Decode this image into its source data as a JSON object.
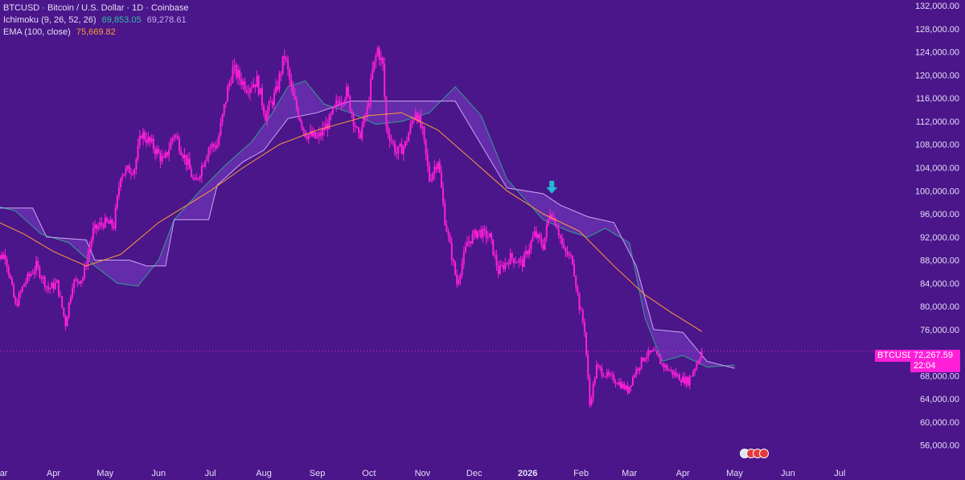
{
  "legend": {
    "symbol": "BTCUSD · Bitcoin / U.S. Dollar · 1D · Coinbase",
    "ichimoku_label": "Ichimoku (9, 26, 52, 26)",
    "ichimoku_v1": "69,853.05",
    "ichimoku_v2": "69,278.61",
    "ema_label": "EMA (100, close)",
    "ema_value": "75,669.82"
  },
  "price_scale": {
    "symbol": "BTCUSD",
    "last_price": "72,267.59",
    "countdown": "22:04"
  },
  "colors": {
    "background": "#4a168a",
    "candles": "#ff1fd8",
    "ema": "#ff9a3c",
    "cloud_fill": "#7a3fc4",
    "span_a": "#2f9e8f",
    "span_b": "#c9a9f0",
    "arrow": "#27b7d6"
  },
  "chart_data": {
    "type": "candlestick",
    "y_scale": "linear",
    "ylim": [
      54000,
      133000
    ],
    "y_ticks": [
      56000,
      60000,
      64000,
      68000,
      72000,
      76000,
      80000,
      84000,
      88000,
      92000,
      96000,
      100000,
      104000,
      108000,
      112000,
      116000,
      120000,
      124000,
      128000,
      132000
    ],
    "y_tick_labels": [
      "56,000.00",
      "60,000.00",
      "64,000.00",
      "68,000.00",
      "72,000.00",
      "76,000.00",
      "80,000.00",
      "84,000.00",
      "88,000.00",
      "92,000.00",
      "96,000.00",
      "100,000.00",
      "104,000.00",
      "108,000.00",
      "112,000.00",
      "116,000.00",
      "120,000.00",
      "124,000.00",
      "128,000.00",
      "132,000.00"
    ],
    "x_range": [
      "2025-03-01",
      "2026-07-20"
    ],
    "x_ticks": [
      {
        "label": "Mar",
        "date": "2025-03-01"
      },
      {
        "label": "Apr",
        "date": "2025-04-01"
      },
      {
        "label": "May",
        "date": "2025-05-01"
      },
      {
        "label": "Jun",
        "date": "2025-06-01"
      },
      {
        "label": "Jul",
        "date": "2025-07-01"
      },
      {
        "label": "Aug",
        "date": "2025-08-01"
      },
      {
        "label": "Sep",
        "date": "2025-09-01"
      },
      {
        "label": "Oct",
        "date": "2025-10-01"
      },
      {
        "label": "Nov",
        "date": "2025-11-01"
      },
      {
        "label": "Dec",
        "date": "2025-12-01"
      },
      {
        "label": "2026",
        "date": "2026-01-01",
        "bold": true
      },
      {
        "label": "Feb",
        "date": "2026-02-01"
      },
      {
        "label": "Mar",
        "date": "2026-03-01"
      },
      {
        "label": "Apr",
        "date": "2026-04-01"
      },
      {
        "label": "May",
        "date": "2026-05-01"
      },
      {
        "label": "Jun",
        "date": "2026-06-01"
      },
      {
        "label": "Jul",
        "date": "2026-07-01"
      }
    ],
    "price_path": [
      [
        "2025-02-25",
        88000
      ],
      [
        "2025-03-04",
        89000
      ],
      [
        "2025-03-10",
        80000
      ],
      [
        "2025-03-15",
        84000
      ],
      [
        "2025-03-22",
        87000
      ],
      [
        "2025-03-29",
        83000
      ],
      [
        "2025-04-03",
        84000
      ],
      [
        "2025-04-08",
        77000
      ],
      [
        "2025-04-12",
        84000
      ],
      [
        "2025-04-18",
        85000
      ],
      [
        "2025-04-24",
        93000
      ],
      [
        "2025-04-30",
        94500
      ],
      [
        "2025-05-06",
        94000
      ],
      [
        "2025-05-10",
        103000
      ],
      [
        "2025-05-18",
        104000
      ],
      [
        "2025-05-22",
        110000
      ],
      [
        "2025-05-28",
        108000
      ],
      [
        "2025-06-04",
        105000
      ],
      [
        "2025-06-10",
        110000
      ],
      [
        "2025-06-18",
        104500
      ],
      [
        "2025-06-22",
        101000
      ],
      [
        "2025-06-30",
        107500
      ],
      [
        "2025-07-05",
        108000
      ],
      [
        "2025-07-11",
        117500
      ],
      [
        "2025-07-14",
        121000
      ],
      [
        "2025-07-22",
        118000
      ],
      [
        "2025-07-28",
        119000
      ],
      [
        "2025-08-02",
        113000
      ],
      [
        "2025-08-08",
        117000
      ],
      [
        "2025-08-13",
        123500
      ],
      [
        "2025-08-18",
        116000
      ],
      [
        "2025-08-25",
        110000
      ],
      [
        "2025-09-01",
        109000
      ],
      [
        "2025-09-08",
        112000
      ],
      [
        "2025-09-13",
        115500
      ],
      [
        "2025-09-18",
        117000
      ],
      [
        "2025-09-25",
        109000
      ],
      [
        "2025-09-30",
        114000
      ],
      [
        "2025-10-03",
        120500
      ],
      [
        "2025-10-06",
        124500
      ],
      [
        "2025-10-09",
        121500
      ],
      [
        "2025-10-11",
        111000
      ],
      [
        "2025-10-17",
        106500
      ],
      [
        "2025-10-22",
        108000
      ],
      [
        "2025-10-28",
        114000
      ],
      [
        "2025-11-01",
        110000
      ],
      [
        "2025-11-05",
        102000
      ],
      [
        "2025-11-10",
        105500
      ],
      [
        "2025-11-14",
        95000
      ],
      [
        "2025-11-21",
        84000
      ],
      [
        "2025-11-27",
        91000
      ],
      [
        "2025-12-03",
        93000
      ],
      [
        "2025-12-10",
        92000
      ],
      [
        "2025-12-15",
        86000
      ],
      [
        "2025-12-22",
        88500
      ],
      [
        "2025-12-29",
        87500
      ],
      [
        "2026-01-05",
        92500
      ],
      [
        "2026-01-10",
        90500
      ],
      [
        "2026-01-14",
        96500
      ],
      [
        "2026-01-18",
        94000
      ],
      [
        "2026-01-22",
        89500
      ],
      [
        "2026-01-27",
        88000
      ],
      [
        "2026-01-31",
        80000
      ],
      [
        "2026-02-03",
        76000
      ],
      [
        "2026-02-06",
        63000
      ],
      [
        "2026-02-10",
        69500
      ],
      [
        "2026-02-16",
        68000
      ],
      [
        "2026-02-22",
        67000
      ],
      [
        "2026-02-28",
        65500
      ],
      [
        "2026-03-04",
        68500
      ],
      [
        "2026-03-10",
        71500
      ],
      [
        "2026-03-15",
        72000
      ],
      [
        "2026-03-20",
        70000
      ],
      [
        "2026-03-26",
        68500
      ],
      [
        "2026-03-31",
        67500
      ],
      [
        "2026-04-04",
        67000
      ],
      [
        "2026-04-08",
        69500
      ],
      [
        "2026-04-12",
        72267.59
      ]
    ],
    "ema_100": [
      [
        "2025-02-25",
        95000
      ],
      [
        "2025-03-15",
        92500
      ],
      [
        "2025-04-01",
        89500
      ],
      [
        "2025-04-20",
        87000
      ],
      [
        "2025-05-10",
        89000
      ],
      [
        "2025-06-01",
        94500
      ],
      [
        "2025-07-01",
        100000
      ],
      [
        "2025-07-20",
        104000
      ],
      [
        "2025-08-10",
        108000
      ],
      [
        "2025-09-01",
        110500
      ],
      [
        "2025-10-01",
        113000
      ],
      [
        "2025-10-20",
        113500
      ],
      [
        "2025-11-10",
        110500
      ],
      [
        "2025-12-01",
        105000
      ],
      [
        "2025-12-20",
        100000
      ],
      [
        "2026-01-10",
        96000
      ],
      [
        "2026-01-31",
        93000
      ],
      [
        "2026-02-20",
        87000
      ],
      [
        "2026-03-10",
        82000
      ],
      [
        "2026-03-25",
        79000
      ],
      [
        "2026-04-12",
        75669.82
      ]
    ],
    "span_a": [
      [
        "2025-02-25",
        97500
      ],
      [
        "2025-03-10",
        96500
      ],
      [
        "2025-03-25",
        92500
      ],
      [
        "2025-04-10",
        91000
      ],
      [
        "2025-04-25",
        87000
      ],
      [
        "2025-05-08",
        84000
      ],
      [
        "2025-05-20",
        83500
      ],
      [
        "2025-06-01",
        88000
      ],
      [
        "2025-06-10",
        95000
      ],
      [
        "2025-06-25",
        100000
      ],
      [
        "2025-07-10",
        104500
      ],
      [
        "2025-07-25",
        108500
      ],
      [
        "2025-08-05",
        113000
      ],
      [
        "2025-08-15",
        118000
      ],
      [
        "2025-08-25",
        119000
      ],
      [
        "2025-09-05",
        115000
      ],
      [
        "2025-09-20",
        113500
      ],
      [
        "2025-10-05",
        111500
      ],
      [
        "2025-10-20",
        112000
      ],
      [
        "2025-11-05",
        113500
      ],
      [
        "2025-11-20",
        118000
      ],
      [
        "2025-12-05",
        113000
      ],
      [
        "2025-12-20",
        102000
      ],
      [
        "2026-01-10",
        95000
      ],
      [
        "2026-01-25",
        93000
      ],
      [
        "2026-02-05",
        92000
      ],
      [
        "2026-02-15",
        93500
      ],
      [
        "2026-03-01",
        91000
      ],
      [
        "2026-03-10",
        78000
      ],
      [
        "2026-03-20",
        70500
      ],
      [
        "2026-04-01",
        71500
      ],
      [
        "2026-04-15",
        69500
      ],
      [
        "2026-05-01",
        69853.05
      ]
    ],
    "span_b": [
      [
        "2025-02-25",
        97000
      ],
      [
        "2025-03-20",
        97000
      ],
      [
        "2025-03-28",
        92000
      ],
      [
        "2025-04-20",
        91500
      ],
      [
        "2025-04-25",
        88000
      ],
      [
        "2025-05-15",
        88000
      ],
      [
        "2025-05-25",
        87000
      ],
      [
        "2025-06-05",
        87000
      ],
      [
        "2025-06-10",
        95000
      ],
      [
        "2025-06-30",
        95000
      ],
      [
        "2025-07-05",
        101000
      ],
      [
        "2025-07-20",
        105000
      ],
      [
        "2025-08-01",
        107000
      ],
      [
        "2025-08-15",
        112500
      ],
      [
        "2025-09-01",
        113500
      ],
      [
        "2025-09-20",
        115500
      ],
      [
        "2025-10-05",
        115500
      ],
      [
        "2025-11-01",
        115500
      ],
      [
        "2025-11-20",
        115500
      ],
      [
        "2025-12-01",
        110000
      ],
      [
        "2025-12-20",
        100500
      ],
      [
        "2026-01-10",
        99500
      ],
      [
        "2026-01-20",
        97500
      ],
      [
        "2026-02-05",
        95500
      ],
      [
        "2026-02-20",
        94500
      ],
      [
        "2026-03-05",
        87000
      ],
      [
        "2026-03-15",
        76000
      ],
      [
        "2026-04-01",
        75500
      ],
      [
        "2026-04-15",
        70500
      ],
      [
        "2026-05-01",
        69278.61
      ]
    ],
    "last_price": 72267.59,
    "marker": {
      "type": "arrow-down",
      "date": "2026-01-15",
      "price": 99500
    }
  }
}
